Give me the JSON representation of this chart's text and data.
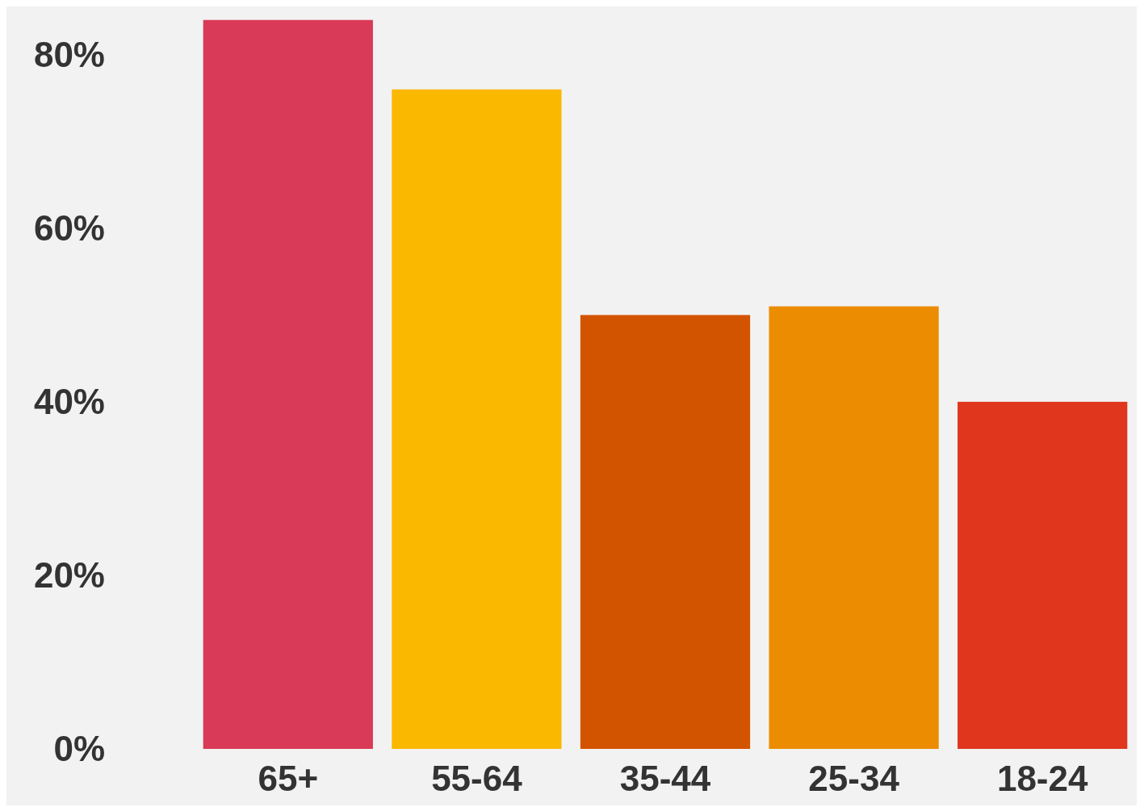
{
  "chart_data": {
    "type": "bar",
    "categories": [
      "65+",
      "55-64",
      "35-44",
      "25-34",
      "18-24"
    ],
    "values": [
      84,
      76,
      50,
      51,
      40
    ],
    "colors": [
      "#d93a57",
      "#fbb800",
      "#d35400",
      "#ec8c00",
      "#e0361d"
    ],
    "ylim": [
      0,
      85
    ],
    "yticks": [
      {
        "value": 0,
        "label": "0%"
      },
      {
        "value": 20,
        "label": "20%"
      },
      {
        "value": 40,
        "label": "40%"
      },
      {
        "value": 60,
        "label": "60%"
      },
      {
        "value": 80,
        "label": "80%"
      }
    ],
    "grid": false
  }
}
